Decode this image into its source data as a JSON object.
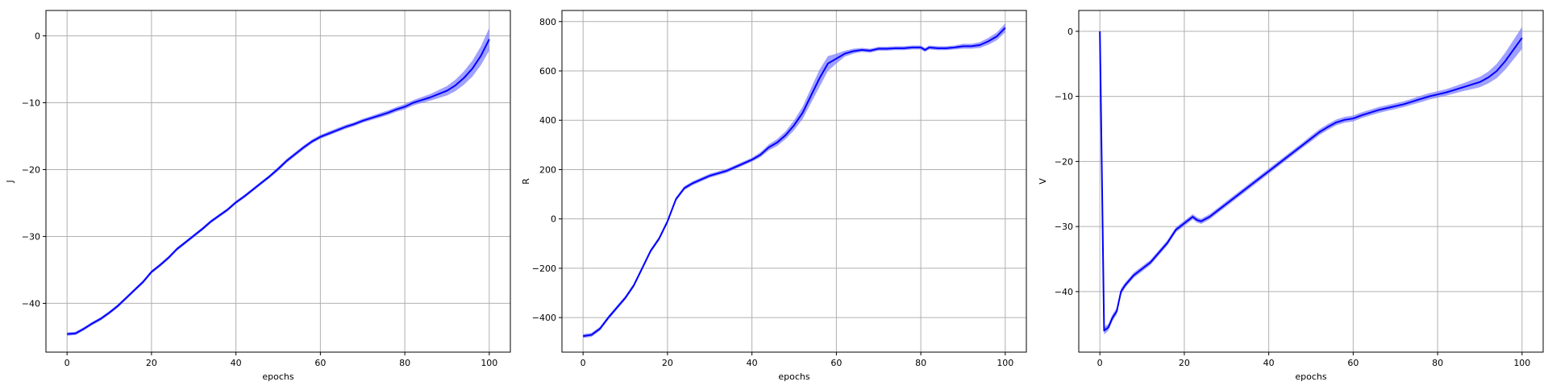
{
  "chart_data": [
    {
      "type": "line",
      "xlabel": "epochs",
      "ylabel": "J",
      "xlim": [
        -5,
        105
      ],
      "ylim": [
        -47.3,
        3.8
      ],
      "xticks": [
        0,
        20,
        40,
        60,
        80,
        100
      ],
      "yticks": [
        -40,
        -30,
        -20,
        -10,
        0
      ],
      "tick_labels_x": [
        "0",
        "20",
        "40",
        "60",
        "80",
        "100"
      ],
      "tick_labels_y": [
        "−40",
        "−30",
        "−20",
        "−10",
        "0"
      ],
      "grid": true,
      "line_color": "#0000ff",
      "band_color": "#8080ff",
      "x": [
        0,
        2,
        4,
        6,
        8,
        10,
        12,
        14,
        16,
        18,
        20,
        22,
        24,
        26,
        28,
        30,
        32,
        34,
        36,
        38,
        40,
        42,
        44,
        46,
        48,
        50,
        52,
        54,
        56,
        58,
        60,
        62,
        64,
        66,
        68,
        70,
        72,
        74,
        76,
        78,
        80,
        82,
        84,
        86,
        88,
        90,
        92,
        94,
        96,
        98,
        100
      ],
      "values": [
        -44.6,
        -44.5,
        -43.8,
        -43.0,
        -42.3,
        -41.4,
        -40.4,
        -39.2,
        -38.0,
        -36.8,
        -35.3,
        -34.3,
        -33.2,
        -31.9,
        -30.9,
        -29.9,
        -28.9,
        -27.8,
        -26.9,
        -26.0,
        -24.9,
        -24.0,
        -23.0,
        -22.0,
        -21.0,
        -19.9,
        -18.7,
        -17.7,
        -16.7,
        -15.8,
        -15.1,
        -14.6,
        -14.1,
        -13.6,
        -13.2,
        -12.7,
        -12.3,
        -11.9,
        -11.5,
        -11.0,
        -10.6,
        -10.0,
        -9.6,
        -9.2,
        -8.7,
        -8.2,
        -7.4,
        -6.3,
        -4.9,
        -3.0,
        -0.5
      ],
      "band": [
        0.25,
        0.25,
        0.25,
        0.25,
        0.25,
        0.25,
        0.25,
        0.25,
        0.25,
        0.25,
        0.25,
        0.25,
        0.25,
        0.25,
        0.25,
        0.25,
        0.25,
        0.25,
        0.25,
        0.25,
        0.25,
        0.25,
        0.25,
        0.25,
        0.25,
        0.3,
        0.3,
        0.3,
        0.3,
        0.3,
        0.3,
        0.3,
        0.3,
        0.3,
        0.3,
        0.3,
        0.3,
        0.35,
        0.35,
        0.35,
        0.4,
        0.4,
        0.45,
        0.5,
        0.6,
        0.7,
        0.85,
        1.0,
        1.2,
        1.4,
        1.7
      ]
    },
    {
      "type": "line",
      "xlabel": "epochs",
      "ylabel": "R",
      "xlim": [
        -5,
        105
      ],
      "ylim": [
        -540,
        845
      ],
      "xticks": [
        0,
        20,
        40,
        60,
        80,
        100
      ],
      "yticks": [
        -400,
        -200,
        0,
        200,
        400,
        600,
        800
      ],
      "tick_labels_x": [
        "0",
        "20",
        "40",
        "60",
        "80",
        "100"
      ],
      "tick_labels_y": [
        "−400",
        "−200",
        "0",
        "200",
        "400",
        "600",
        "800"
      ],
      "grid": true,
      "line_color": "#0000ff",
      "band_color": "#8080ff",
      "x": [
        0,
        2,
        4,
        6,
        8,
        10,
        12,
        14,
        16,
        18,
        20,
        22,
        24,
        26,
        28,
        30,
        32,
        34,
        36,
        38,
        40,
        42,
        44,
        46,
        48,
        50,
        52,
        54,
        56,
        58,
        60,
        62,
        64,
        66,
        68,
        70,
        72,
        74,
        76,
        78,
        80,
        81,
        82,
        84,
        86,
        88,
        90,
        92,
        94,
        96,
        98,
        100
      ],
      "values": [
        -475,
        -470,
        -445,
        -400,
        -360,
        -320,
        -270,
        -200,
        -130,
        -80,
        -10,
        80,
        125,
        145,
        160,
        175,
        185,
        195,
        210,
        225,
        240,
        260,
        290,
        310,
        340,
        380,
        430,
        500,
        570,
        630,
        650,
        670,
        680,
        685,
        682,
        690,
        690,
        692,
        692,
        695,
        695,
        685,
        695,
        692,
        692,
        695,
        700,
        700,
        705,
        720,
        740,
        775
      ],
      "band": [
        8,
        8,
        8,
        8,
        8,
        8,
        8,
        8,
        8,
        8,
        8,
        8,
        8,
        8,
        8,
        8,
        8,
        8,
        8,
        8,
        8,
        10,
        12,
        14,
        16,
        20,
        25,
        30,
        35,
        30,
        20,
        12,
        10,
        8,
        8,
        8,
        8,
        8,
        8,
        8,
        8,
        8,
        8,
        8,
        8,
        8,
        10,
        10,
        12,
        14,
        16,
        18
      ]
    },
    {
      "type": "line",
      "xlabel": "epochs",
      "ylabel": "V",
      "xlim": [
        -5,
        105
      ],
      "ylim": [
        -49.3,
        3.2
      ],
      "xticks": [
        0,
        20,
        40,
        60,
        80,
        100
      ],
      "yticks": [
        -40,
        -30,
        -20,
        -10,
        0
      ],
      "tick_labels_x": [
        "0",
        "20",
        "40",
        "60",
        "80",
        "100"
      ],
      "tick_labels_y": [
        "−40",
        "−30",
        "−20",
        "−10",
        "0"
      ],
      "grid": true,
      "line_color": "#0000ff",
      "band_color": "#8080ff",
      "x": [
        0,
        1,
        2,
        3,
        4,
        5,
        6,
        8,
        10,
        12,
        14,
        16,
        18,
        20,
        22,
        23,
        24,
        26,
        28,
        30,
        32,
        34,
        36,
        38,
        40,
        42,
        44,
        46,
        48,
        50,
        52,
        54,
        56,
        58,
        60,
        62,
        64,
        66,
        68,
        70,
        72,
        74,
        76,
        78,
        80,
        82,
        84,
        86,
        88,
        90,
        92,
        94,
        96,
        98,
        100
      ],
      "values": [
        0.0,
        -46.0,
        -45.5,
        -44.0,
        -43.0,
        -40.0,
        -39.0,
        -37.5,
        -36.5,
        -35.5,
        -34.0,
        -32.5,
        -30.5,
        -29.5,
        -28.5,
        -29.0,
        -29.2,
        -28.5,
        -27.5,
        -26.5,
        -25.5,
        -24.5,
        -23.5,
        -22.5,
        -21.5,
        -20.5,
        -19.5,
        -18.5,
        -17.5,
        -16.5,
        -15.5,
        -14.7,
        -14.0,
        -13.6,
        -13.4,
        -12.9,
        -12.5,
        -12.1,
        -11.8,
        -11.5,
        -11.2,
        -10.8,
        -10.4,
        -10.0,
        -9.7,
        -9.4,
        -9.0,
        -8.6,
        -8.2,
        -7.8,
        -7.1,
        -6.1,
        -4.6,
        -2.8,
        -1.0
      ],
      "band": [
        0.2,
        0.6,
        0.5,
        0.5,
        0.5,
        0.5,
        0.4,
        0.4,
        0.4,
        0.4,
        0.4,
        0.4,
        0.4,
        0.4,
        0.4,
        0.4,
        0.4,
        0.4,
        0.4,
        0.4,
        0.4,
        0.4,
        0.4,
        0.4,
        0.4,
        0.4,
        0.4,
        0.4,
        0.4,
        0.45,
        0.45,
        0.45,
        0.45,
        0.45,
        0.45,
        0.45,
        0.45,
        0.45,
        0.45,
        0.45,
        0.45,
        0.45,
        0.5,
        0.5,
        0.5,
        0.5,
        0.55,
        0.6,
        0.7,
        0.8,
        0.9,
        1.1,
        1.3,
        1.5,
        1.7
      ]
    }
  ]
}
